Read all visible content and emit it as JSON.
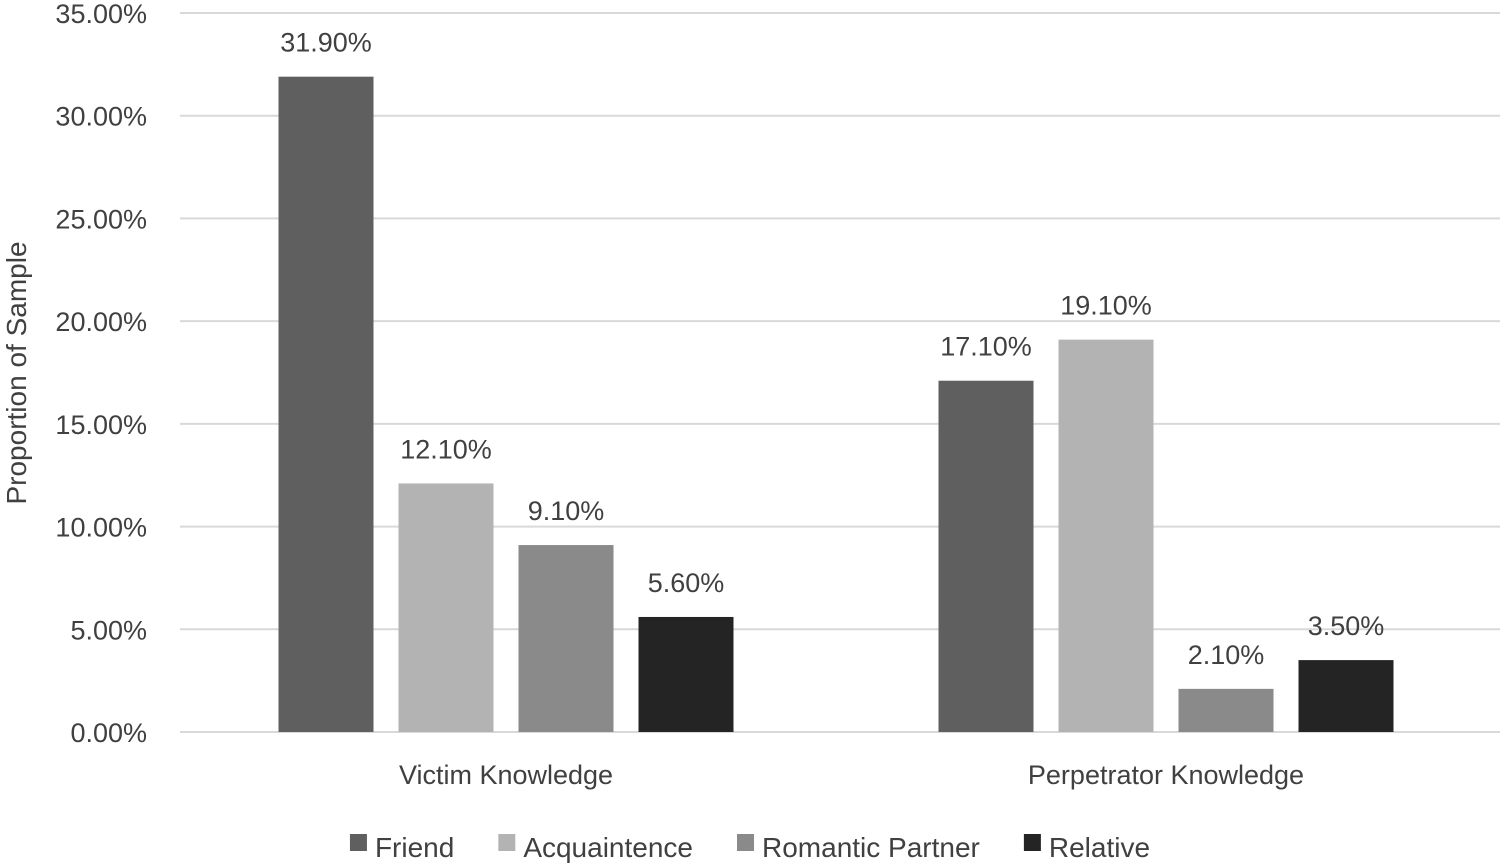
{
  "chart_data": {
    "type": "bar",
    "title": "",
    "xlabel": "",
    "ylabel": "Proportion of Sample",
    "ylim": [
      0,
      35
    ],
    "yticks": [
      0,
      5,
      10,
      15,
      20,
      25,
      30,
      35
    ],
    "ytick_labels": [
      "0.00%",
      "5.00%",
      "10.00%",
      "15.00%",
      "20.00%",
      "25.00%",
      "30.00%",
      "35.00%"
    ],
    "categories": [
      "Victim Knowledge",
      "Perpetrator Knowledge"
    ],
    "series": [
      {
        "name": "Friend",
        "color": "#5f5f5f",
        "values": [
          31.9,
          17.1
        ],
        "labels": [
          "31.90%",
          "17.10%"
        ]
      },
      {
        "name": "Acquaintence",
        "color": "#b3b3b3",
        "values": [
          12.1,
          19.1
        ],
        "labels": [
          "12.10%",
          "19.10%"
        ]
      },
      {
        "name": "Romantic Partner",
        "color": "#8a8a8a",
        "values": [
          9.1,
          2.1
        ],
        "labels": [
          "9.10%",
          "2.10%"
        ]
      },
      {
        "name": "Relative",
        "color": "#242424",
        "values": [
          5.6,
          3.5
        ],
        "labels": [
          "5.60%",
          "3.50%"
        ]
      }
    ],
    "grid": true,
    "legend": "bottom"
  }
}
